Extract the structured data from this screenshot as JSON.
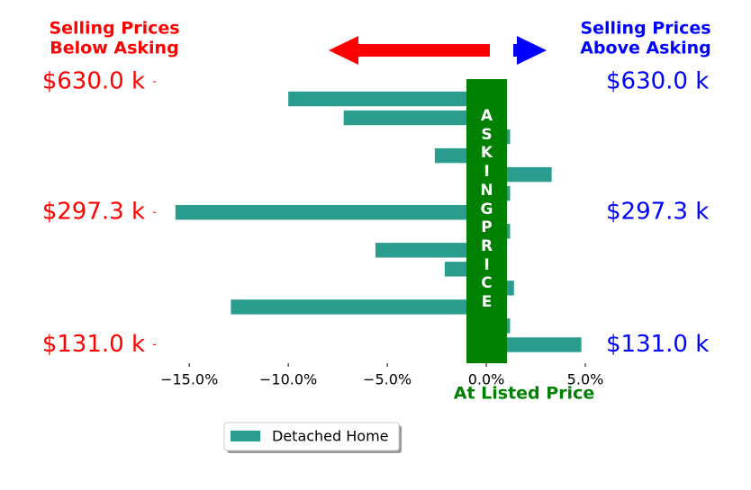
{
  "chart_data": {
    "type": "barh",
    "title_left": [
      "Selling Prices",
      "Below Asking"
    ],
    "title_right": [
      "Selling Prices",
      "Above Asking"
    ],
    "band_label": "ASKING PRICE",
    "x_label": "At Listed Price",
    "categories": [
      "$630.0 k",
      null,
      null,
      null,
      null,
      null,
      "$297.3 k",
      null,
      null,
      null,
      null,
      null,
      null,
      "$131.0 k"
    ],
    "series": [
      {
        "name": "Detached Home",
        "color": "#2a9d8f",
        "values": [
          -10.0,
          -7.2,
          1.2,
          -2.6,
          3.3,
          1.2,
          -15.7,
          1.2,
          -5.6,
          -2.1,
          1.4,
          -12.9,
          1.2,
          4.8
        ]
      }
    ],
    "xlim": [
      -16.6,
      5
    ],
    "xticks": [
      {
        "value": -15,
        "label": "−15.0%"
      },
      {
        "value": -10,
        "label": "−10.0%"
      },
      {
        "value": -5,
        "label": "−5.0%"
      },
      {
        "value": 0,
        "label": "0.0%"
      },
      {
        "value": 5,
        "label": "5.0%"
      }
    ],
    "band_color": "#008000",
    "legend": "lower center"
  }
}
